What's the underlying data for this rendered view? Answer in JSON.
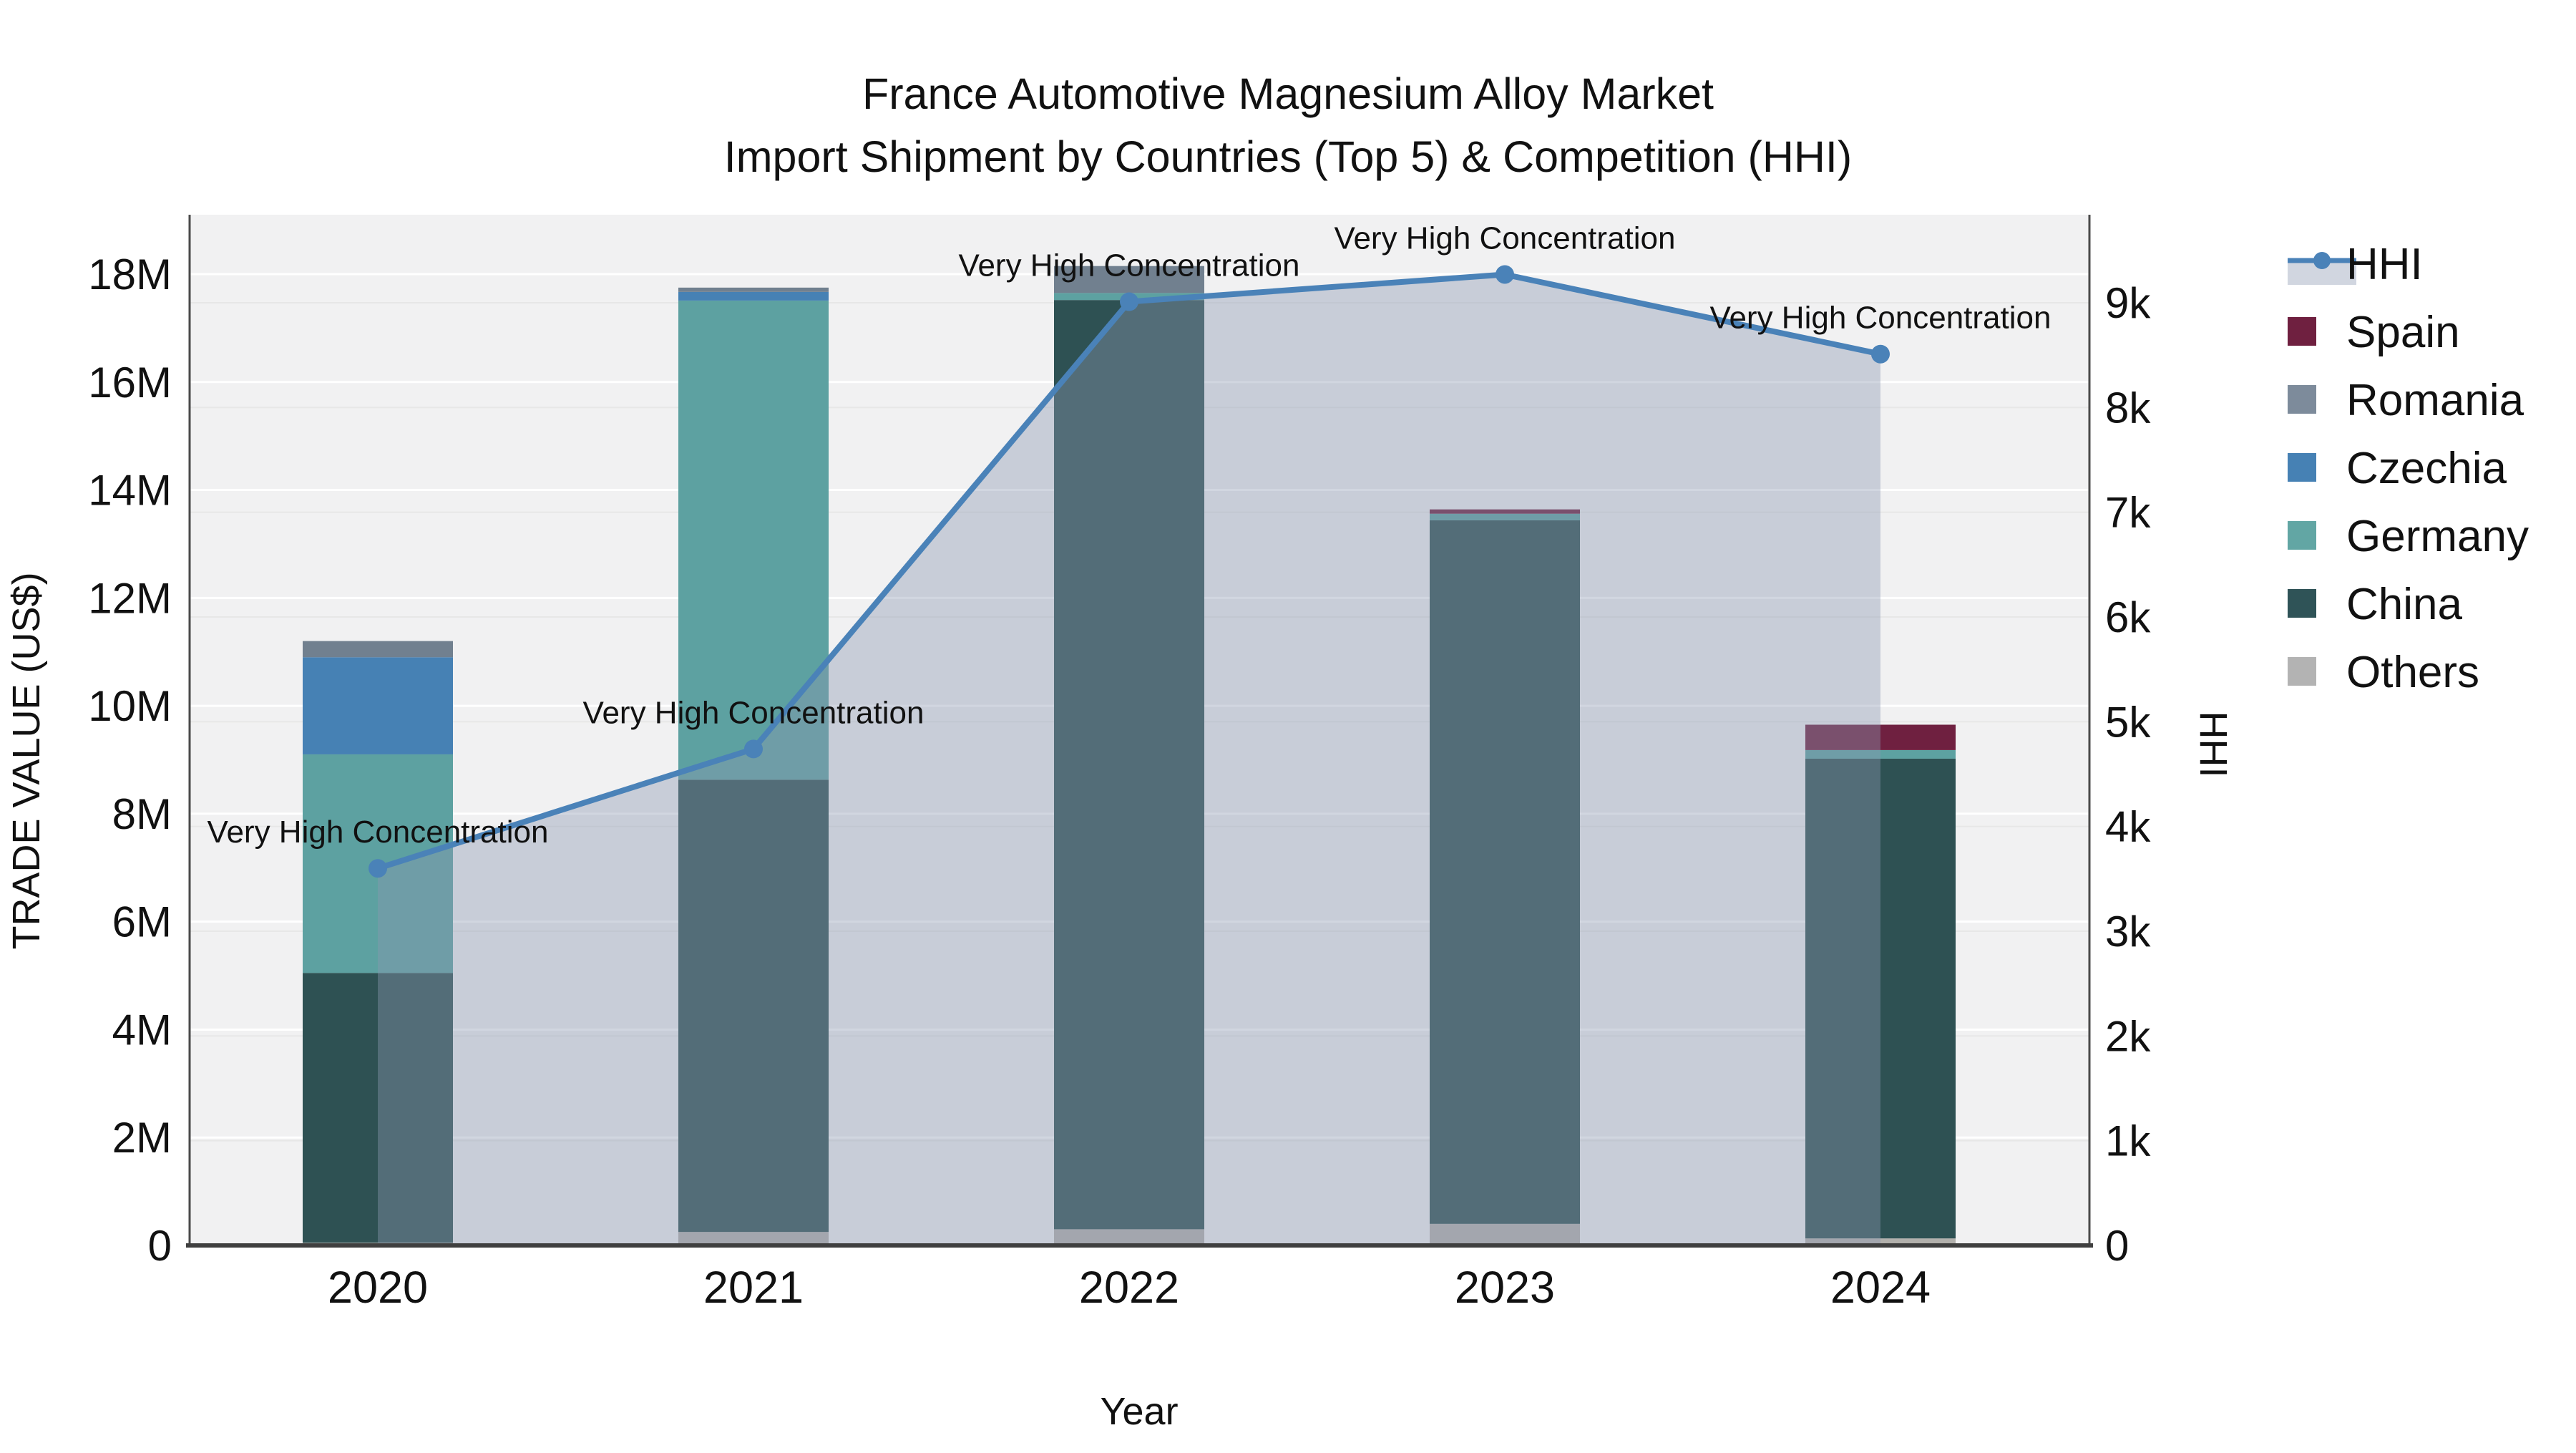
{
  "title": {
    "line1": "France Automotive Magnesium Alloy Market",
    "line2": "Import Shipment by Countries (Top 5) & Competition (HHI)"
  },
  "axes": {
    "x_title": "Year",
    "y_left_title": "TRADE VALUE (US$)",
    "y_right_title": "HHI",
    "y_left_ticks": [
      "0",
      "2M",
      "4M",
      "6M",
      "8M",
      "10M",
      "12M",
      "14M",
      "16M",
      "18M"
    ],
    "y_left_tick_values_musd": [
      0,
      2,
      4,
      6,
      8,
      10,
      12,
      14,
      16,
      18
    ],
    "y_right_ticks": [
      "0",
      "1k",
      "2k",
      "3k",
      "4k",
      "5k",
      "6k",
      "7k",
      "8k",
      "9k"
    ],
    "y_right_tick_values": [
      0,
      1000,
      2000,
      3000,
      4000,
      5000,
      6000,
      7000,
      8000,
      9000
    ]
  },
  "chart_data": {
    "type": "bar+line",
    "title": "France Automotive Magnesium Alloy Market — Import Shipment by Countries (Top 5) & Competition (HHI)",
    "xlabel": "Year",
    "ylabel_left": "TRADE VALUE (US$)",
    "ylabel_right": "HHI",
    "categories": [
      "2020",
      "2021",
      "2022",
      "2023",
      "2024"
    ],
    "stack_order_bottom_to_top": [
      "Others",
      "China",
      "Germany",
      "Czechia",
      "Romania",
      "Spain"
    ],
    "series": [
      {
        "name": "Others",
        "color": "#b2b0ac",
        "values_musd": [
          0.05,
          0.25,
          0.3,
          0.4,
          0.13
        ]
      },
      {
        "name": "China",
        "color": "#2e5153",
        "values_musd": [
          5.0,
          8.38,
          17.22,
          13.04,
          8.89
        ]
      },
      {
        "name": "Germany",
        "color": "#5da1a1",
        "values_musd": [
          4.05,
          8.88,
          0.13,
          0.12,
          0.16
        ]
      },
      {
        "name": "Czechia",
        "color": "#4681b4",
        "values_musd": [
          1.8,
          0.16,
          0.0,
          0.0,
          0.0
        ]
      },
      {
        "name": "Romania",
        "color": "#71808f",
        "values_musd": [
          0.3,
          0.08,
          0.5,
          0.0,
          0.0
        ]
      },
      {
        "name": "Spain",
        "color": "#6f2040",
        "values_musd": [
          0.0,
          0.0,
          0.0,
          0.08,
          0.47
        ]
      }
    ],
    "bar_totals_musd": [
      11.2,
      17.75,
      18.15,
      13.64,
      9.65
    ],
    "hhi_line": {
      "name": "HHI",
      "color": "#4a82b8",
      "fill_color": "rgba(140,153,178,0.40)",
      "values": [
        3600,
        4740,
        9010,
        9270,
        8510
      ]
    },
    "annotations": [
      {
        "x": "2020",
        "text": "Very High Concentration"
      },
      {
        "x": "2021",
        "text": "Very High Concentration"
      },
      {
        "x": "2022",
        "text": "Very High Concentration"
      },
      {
        "x": "2023",
        "text": "Very High Concentration"
      },
      {
        "x": "2024",
        "text": "Very High Concentration"
      }
    ],
    "ylim_left_musd": [
      0,
      19.1
    ],
    "ylim_right": [
      0,
      9850
    ],
    "grid": true,
    "legend_position": "right"
  },
  "legend": {
    "items": [
      {
        "label": "HHI",
        "type": "line",
        "color": "#4a82b8",
        "fill": "rgba(140,153,178,0.40)"
      },
      {
        "label": "Spain",
        "type": "square",
        "color": "#6f2040"
      },
      {
        "label": "Romania",
        "type": "square",
        "color": "#7d8b9b"
      },
      {
        "label": "Czechia",
        "type": "square",
        "color": "#4681b4"
      },
      {
        "label": "Germany",
        "type": "square",
        "color": "#62a6a4"
      },
      {
        "label": "China",
        "type": "square",
        "color": "#2f5357"
      },
      {
        "label": "Others",
        "type": "square",
        "color": "#b3b3b3"
      }
    ]
  },
  "colors": {
    "plot_background": "#f1f1f2",
    "page_background": "#ffffff",
    "grid_major": "#ffffff",
    "grid_minor": "#e7e7e7",
    "axis_line": "#3f3f3f",
    "text": "#111111"
  }
}
